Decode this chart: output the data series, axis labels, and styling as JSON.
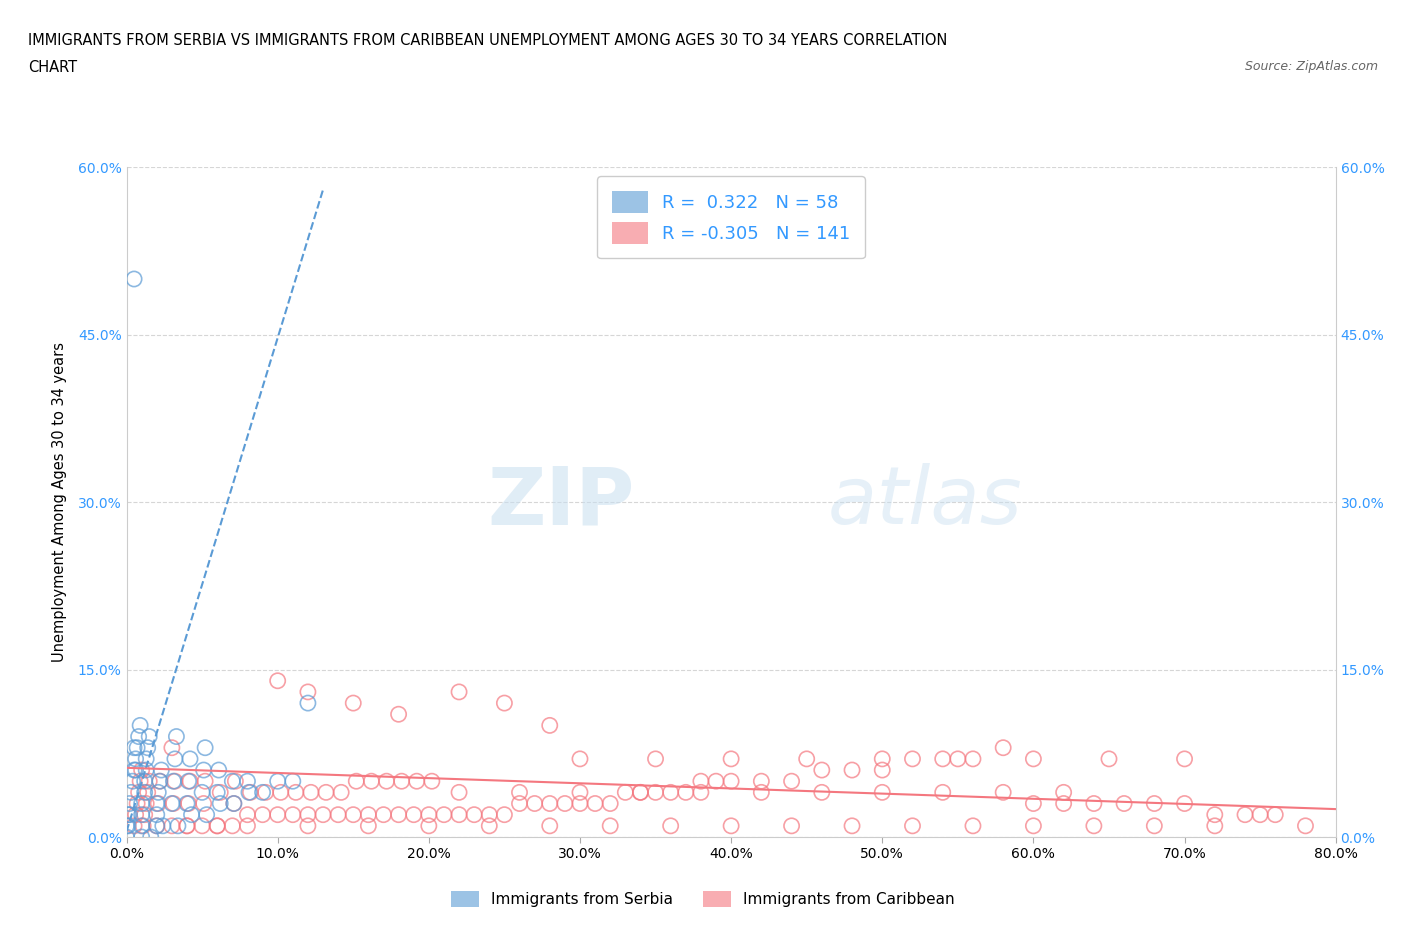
{
  "title_line1": "IMMIGRANTS FROM SERBIA VS IMMIGRANTS FROM CARIBBEAN UNEMPLOYMENT AMONG AGES 30 TO 34 YEARS CORRELATION",
  "title_line2": "CHART",
  "source_text": "Source: ZipAtlas.com",
  "ylabel": "Unemployment Among Ages 30 to 34 years",
  "xlim": [
    0.0,
    0.8
  ],
  "ylim": [
    0.0,
    0.6
  ],
  "xtick_labels": [
    "0.0%",
    "10.0%",
    "20.0%",
    "30.0%",
    "40.0%",
    "50.0%",
    "60.0%",
    "70.0%",
    "80.0%"
  ],
  "xtick_vals": [
    0.0,
    0.1,
    0.2,
    0.3,
    0.4,
    0.5,
    0.6,
    0.7,
    0.8
  ],
  "ytick_labels": [
    "0.0%",
    "15.0%",
    "30.0%",
    "45.0%",
    "60.0%"
  ],
  "ytick_vals": [
    0.0,
    0.15,
    0.3,
    0.45,
    0.6
  ],
  "serbia_color": "#5b9bd5",
  "caribbean_color": "#f4777f",
  "serbia_R": 0.322,
  "serbia_N": 58,
  "caribbean_R": -0.305,
  "caribbean_N": 141,
  "legend_serbia_label": "Immigrants from Serbia",
  "legend_caribbean_label": "Immigrants from Caribbean",
  "watermark_zip": "ZIP",
  "watermark_atlas": "atlas",
  "serbia_trend_x": [
    0.0,
    0.13
  ],
  "serbia_trend_y": [
    0.005,
    0.58
  ],
  "caribbean_trend_x": [
    0.0,
    0.8
  ],
  "caribbean_trend_y": [
    0.062,
    0.025
  ],
  "serbia_points_x": [
    0.005,
    0.0,
    0.0,
    0.001,
    0.001,
    0.002,
    0.002,
    0.003,
    0.004,
    0.005,
    0.006,
    0.006,
    0.007,
    0.008,
    0.009,
    0.01,
    0.01,
    0.01,
    0.01,
    0.012,
    0.012,
    0.013,
    0.013,
    0.014,
    0.015,
    0.016,
    0.02,
    0.02,
    0.02,
    0.021,
    0.022,
    0.023,
    0.024,
    0.03,
    0.031,
    0.032,
    0.033,
    0.034,
    0.04,
    0.041,
    0.042,
    0.043,
    0.05,
    0.051,
    0.052,
    0.053,
    0.06,
    0.061,
    0.062,
    0.07,
    0.071,
    0.08,
    0.081,
    0.09,
    0.1,
    0.11,
    0.12,
    0.005
  ],
  "serbia_points_y": [
    0.5,
    0.0,
    0.01,
    0.01,
    0.02,
    0.02,
    0.03,
    0.04,
    0.05,
    0.06,
    0.06,
    0.07,
    0.08,
    0.09,
    0.1,
    0.0,
    0.01,
    0.02,
    0.03,
    0.04,
    0.05,
    0.06,
    0.07,
    0.08,
    0.09,
    0.0,
    0.01,
    0.02,
    0.03,
    0.04,
    0.05,
    0.06,
    0.01,
    0.03,
    0.05,
    0.07,
    0.09,
    0.01,
    0.03,
    0.05,
    0.07,
    0.02,
    0.04,
    0.06,
    0.08,
    0.02,
    0.04,
    0.06,
    0.03,
    0.05,
    0.03,
    0.05,
    0.04,
    0.04,
    0.05,
    0.05,
    0.12,
    0.08
  ],
  "caribbean_points_x": [
    0.005,
    0.006,
    0.007,
    0.008,
    0.009,
    0.01,
    0.011,
    0.012,
    0.013,
    0.014,
    0.015,
    0.02,
    0.021,
    0.022,
    0.03,
    0.031,
    0.032,
    0.04,
    0.041,
    0.042,
    0.05,
    0.051,
    0.052,
    0.06,
    0.062,
    0.07,
    0.071,
    0.072,
    0.08,
    0.082,
    0.09,
    0.092,
    0.1,
    0.102,
    0.11,
    0.112,
    0.12,
    0.122,
    0.13,
    0.132,
    0.14,
    0.142,
    0.15,
    0.152,
    0.16,
    0.162,
    0.17,
    0.172,
    0.18,
    0.182,
    0.19,
    0.192,
    0.2,
    0.202,
    0.21,
    0.22,
    0.23,
    0.24,
    0.25,
    0.26,
    0.27,
    0.28,
    0.29,
    0.3,
    0.31,
    0.32,
    0.33,
    0.34,
    0.35,
    0.36,
    0.37,
    0.38,
    0.39,
    0.4,
    0.42,
    0.44,
    0.46,
    0.48,
    0.5,
    0.52,
    0.54,
    0.56,
    0.58,
    0.6,
    0.62,
    0.64,
    0.66,
    0.68,
    0.7,
    0.72,
    0.74,
    0.76,
    0.78,
    0.1,
    0.12,
    0.15,
    0.18,
    0.22,
    0.25,
    0.28,
    0.04,
    0.06,
    0.08,
    0.12,
    0.16,
    0.2,
    0.24,
    0.28,
    0.32,
    0.36,
    0.4,
    0.44,
    0.48,
    0.52,
    0.56,
    0.6,
    0.64,
    0.68,
    0.72,
    0.3,
    0.35,
    0.4,
    0.45,
    0.5,
    0.55,
    0.6,
    0.65,
    0.7,
    0.75,
    0.22,
    0.26,
    0.3,
    0.34,
    0.38,
    0.42,
    0.46,
    0.5,
    0.54,
    0.58,
    0.62,
    0.03
  ],
  "caribbean_points_y": [
    0.01,
    0.02,
    0.03,
    0.04,
    0.05,
    0.06,
    0.01,
    0.02,
    0.03,
    0.04,
    0.05,
    0.01,
    0.03,
    0.05,
    0.01,
    0.03,
    0.05,
    0.01,
    0.03,
    0.05,
    0.01,
    0.03,
    0.05,
    0.01,
    0.04,
    0.01,
    0.03,
    0.05,
    0.02,
    0.04,
    0.02,
    0.04,
    0.02,
    0.04,
    0.02,
    0.04,
    0.02,
    0.04,
    0.02,
    0.04,
    0.02,
    0.04,
    0.02,
    0.05,
    0.02,
    0.05,
    0.02,
    0.05,
    0.02,
    0.05,
    0.02,
    0.05,
    0.02,
    0.05,
    0.02,
    0.02,
    0.02,
    0.02,
    0.02,
    0.03,
    0.03,
    0.03,
    0.03,
    0.03,
    0.03,
    0.03,
    0.04,
    0.04,
    0.04,
    0.04,
    0.04,
    0.05,
    0.05,
    0.05,
    0.05,
    0.05,
    0.06,
    0.06,
    0.06,
    0.07,
    0.07,
    0.07,
    0.08,
    0.03,
    0.03,
    0.03,
    0.03,
    0.03,
    0.03,
    0.02,
    0.02,
    0.02,
    0.01,
    0.14,
    0.13,
    0.12,
    0.11,
    0.13,
    0.12,
    0.1,
    0.01,
    0.01,
    0.01,
    0.01,
    0.01,
    0.01,
    0.01,
    0.01,
    0.01,
    0.01,
    0.01,
    0.01,
    0.01,
    0.01,
    0.01,
    0.01,
    0.01,
    0.01,
    0.01,
    0.07,
    0.07,
    0.07,
    0.07,
    0.07,
    0.07,
    0.07,
    0.07,
    0.07,
    0.02,
    0.04,
    0.04,
    0.04,
    0.04,
    0.04,
    0.04,
    0.04,
    0.04,
    0.04,
    0.04,
    0.04,
    0.08
  ]
}
